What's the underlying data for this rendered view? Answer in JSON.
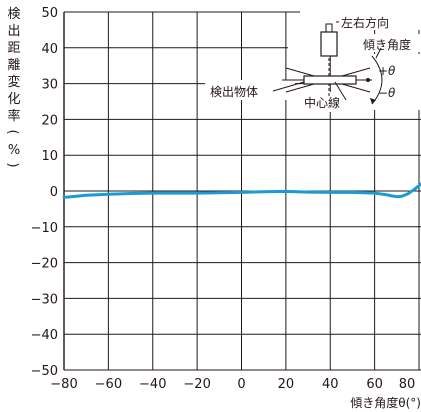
{
  "chart_data": {
    "type": "line",
    "title": "",
    "ylabel": "検出距離変化率（%）",
    "xlabel": "傾き角度θ(°)",
    "xlim": [
      -80,
      80
    ],
    "ylim": [
      -50,
      50
    ],
    "grid": true,
    "x_ticks": [
      "−80",
      "−60",
      "−40",
      "−20",
      "0",
      "20",
      "40",
      "60",
      "80"
    ],
    "y_ticks": [
      "50",
      "40",
      "30",
      "20",
      "10",
      "0",
      "−10",
      "−20",
      "−30",
      "−40",
      "−50"
    ],
    "series": [
      {
        "color": "#1a9ad6",
        "x": [
          -80,
          -75,
          -70,
          -60,
          -50,
          -40,
          -30,
          -20,
          -10,
          0,
          10,
          20,
          30,
          40,
          50,
          60,
          65,
          68,
          70,
          72,
          75,
          78,
          80,
          82
        ],
        "y": [
          -1.8,
          -1.5,
          -1.2,
          -0.9,
          -0.7,
          -0.6,
          -0.6,
          -0.6,
          -0.5,
          -0.4,
          -0.2,
          -0.1,
          -0.3,
          -0.4,
          -0.4,
          -0.6,
          -1.0,
          -1.4,
          -1.6,
          -1.5,
          -0.8,
          0.5,
          1.5,
          2.5
        ]
      }
    ],
    "inset": {
      "direction_label": "左右方向",
      "tilt_label": "傾き角度",
      "object_label": "検出物体",
      "center_label": "中心線",
      "plus_theta": "+θ",
      "minus_theta": "−θ"
    }
  }
}
